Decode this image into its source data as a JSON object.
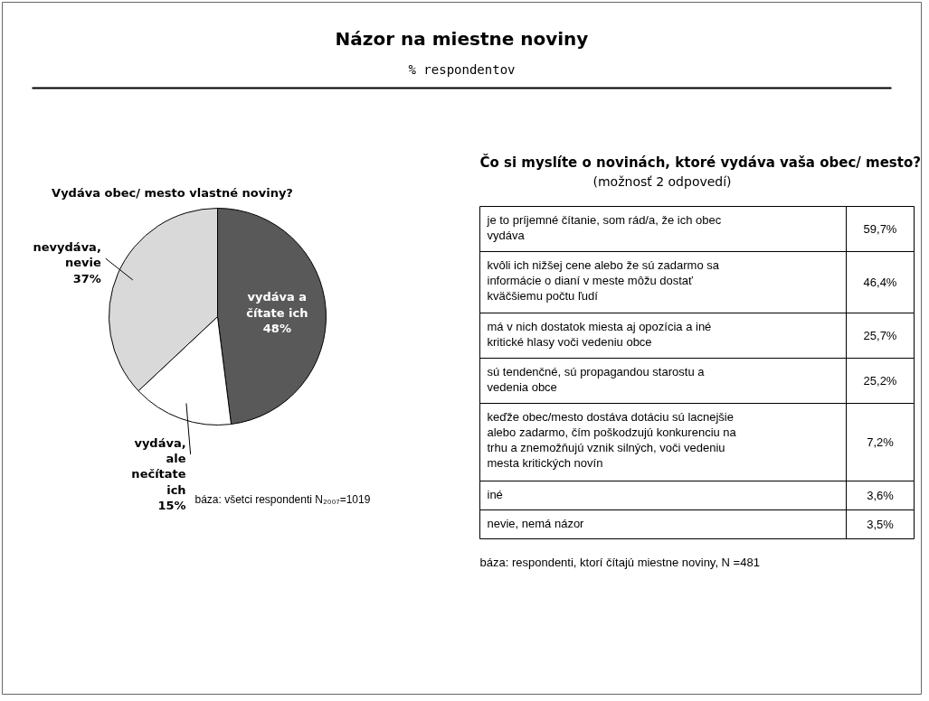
{
  "chart_data": [
    {
      "type": "pie",
      "title": "Názor na miestne noviny",
      "subtitle": "% respondentov",
      "categories": [
        "vydáva a čítate ich",
        "vydáva, ale nečítate ich",
        "nevydáva, nevie"
      ],
      "values": [
        48,
        15,
        37
      ],
      "colors": [
        "#595959",
        "#ffffff",
        "#d9d9d9"
      ],
      "value_labels": [
        "48%",
        "15%",
        "37%"
      ],
      "annotations": [
        "Vydáva obec/ mesto vlastné noviny?",
        "báza: všetci respondenti N₂₀₀₇=1019"
      ]
    },
    {
      "type": "other",
      "title": "Čo si myslíte o novinách, ktoré vydáva vaša obec/ mesto?",
      "subtitle": "(možnosť 2 odpovedí)",
      "categories": [
        "je to príjemné čítanie, som rád/a, že ich obec vydáva",
        "kvôli ich nižšej cene alebo že sú zadarmo sa informácie o dianí v meste môžu dostať kväčšiemu počtu ľudí",
        "má v nich dostatok miesta aj opozícia a iné kritické hlasy voči vedeniu obce",
        "sú tendenčné, sú propagandou starostu a vedenia obce",
        "keďže obec/mesto dostáva dotáciu sú lacnejšie alebo zadarmo, čím poškodzujú konkurenciu na trhu a znemožňujú vznik silných, voči vedeniu mesta kritických novín",
        "iné",
        "nevie, nemá názor"
      ],
      "value_labels": [
        "59,7%",
        "46,4%",
        "25,7%",
        "25,2%",
        "7,2%",
        "3,6%",
        "3,5%"
      ],
      "annotations": [
        "báza: respondenti, ktorí čítajú miestne noviny, N =481"
      ]
    }
  ]
}
